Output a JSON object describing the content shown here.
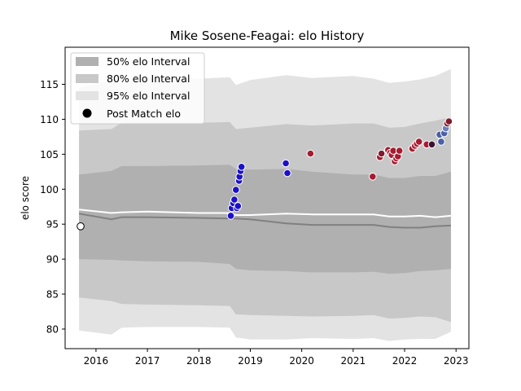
{
  "chart_data": {
    "type": "scatter",
    "title": "Mike Sosene-Feagai: elo History",
    "xlabel": "",
    "ylabel": "elo score",
    "xlim": [
      2015.4,
      2023.25
    ],
    "ylim": [
      77.2,
      120.3
    ],
    "x_ticks": [
      "2016",
      "2017",
      "2018",
      "2019",
      "2020",
      "2021",
      "2022",
      "2023"
    ],
    "y_ticks": [
      "80",
      "85",
      "90",
      "95",
      "100",
      "105",
      "110",
      "115"
    ],
    "grid": false,
    "legend": {
      "placement": "top-left",
      "entries": [
        "50% elo Interval",
        "80% elo Interval",
        "95% elo Interval",
        "Post Match elo"
      ]
    },
    "colors": {
      "band_50": "#b0b0b0",
      "band_80": "#c8c8c8",
      "band_95": "#e3e3e3",
      "mean_line": "#ffffff",
      "median_line": "#808080",
      "point_edge": "#ffffff",
      "first_point_fill": "#ffffff",
      "first_point_edge": "#000000"
    },
    "bands": {
      "x": [
        2015.67,
        2016.3,
        2016.5,
        2017.0,
        2018.0,
        2018.6,
        2018.72,
        2019.0,
        2019.7,
        2020.2,
        2021.0,
        2021.4,
        2021.7,
        2022.0,
        2022.3,
        2022.6,
        2022.9
      ],
      "p95_upper": [
        114.5,
        115.6,
        115.8,
        115.8,
        115.8,
        116.0,
        114.9,
        115.6,
        116.3,
        115.9,
        116.2,
        115.8,
        115.2,
        115.4,
        115.7,
        116.2,
        117.2
      ],
      "p80_upper": [
        108.4,
        108.6,
        109.5,
        109.5,
        109.5,
        109.6,
        108.6,
        108.8,
        109.3,
        109.1,
        109.4,
        109.4,
        108.8,
        108.9,
        109.4,
        109.8,
        110.3
      ],
      "p50_upper": [
        102.1,
        102.6,
        103.3,
        103.3,
        103.4,
        103.5,
        102.9,
        102.8,
        102.9,
        102.5,
        102.1,
        102.1,
        101.6,
        101.6,
        101.9,
        101.9,
        102.5
      ],
      "p50_lower": [
        90.0,
        89.9,
        89.8,
        89.7,
        89.6,
        89.3,
        88.6,
        88.4,
        88.3,
        88.1,
        88.1,
        88.2,
        87.9,
        88.0,
        88.3,
        88.4,
        88.6
      ],
      "p80_lower": [
        84.5,
        84.0,
        83.6,
        83.5,
        83.4,
        83.3,
        82.1,
        82.0,
        81.9,
        81.8,
        81.9,
        82.0,
        81.5,
        81.6,
        81.8,
        81.7,
        81.0
      ],
      "p95_lower": [
        79.8,
        79.2,
        80.2,
        80.3,
        80.3,
        80.2,
        78.8,
        78.5,
        78.5,
        78.7,
        78.6,
        78.7,
        78.3,
        78.5,
        78.6,
        78.6,
        79.6
      ],
      "mean": [
        97.1,
        96.6,
        96.7,
        96.8,
        96.6,
        96.6,
        96.3,
        96.3,
        96.5,
        96.4,
        96.4,
        96.4,
        96.1,
        96.1,
        96.2,
        96.0,
        96.2
      ],
      "median": [
        96.5,
        95.7,
        96.0,
        96.0,
        95.9,
        95.8,
        95.8,
        95.7,
        95.1,
        94.9,
        94.9,
        94.9,
        94.6,
        94.5,
        94.5,
        94.7,
        94.8
      ]
    },
    "points": [
      {
        "x": 2015.7,
        "y": 94.7,
        "color": "#ffffff"
      },
      {
        "x": 2018.62,
        "y": 96.2,
        "color": "#1c10c8"
      },
      {
        "x": 2018.64,
        "y": 97.3,
        "color": "#1c10c8"
      },
      {
        "x": 2018.67,
        "y": 98.0,
        "color": "#1c10c8"
      },
      {
        "x": 2018.69,
        "y": 98.5,
        "color": "#1c10c8"
      },
      {
        "x": 2018.72,
        "y": 99.9,
        "color": "#1c10c8"
      },
      {
        "x": 2018.74,
        "y": 97.3,
        "color": "#1c10c8"
      },
      {
        "x": 2018.76,
        "y": 97.6,
        "color": "#1c10c8"
      },
      {
        "x": 2018.78,
        "y": 101.2,
        "color": "#1c10c8"
      },
      {
        "x": 2018.79,
        "y": 101.8,
        "color": "#1c10c8"
      },
      {
        "x": 2018.81,
        "y": 102.6,
        "color": "#1c10c8"
      },
      {
        "x": 2018.83,
        "y": 103.2,
        "color": "#1c10c8"
      },
      {
        "x": 2019.69,
        "y": 103.7,
        "color": "#1c10c8"
      },
      {
        "x": 2019.72,
        "y": 102.3,
        "color": "#1c10c8"
      },
      {
        "x": 2020.17,
        "y": 105.1,
        "color": "#a51c30"
      },
      {
        "x": 2021.38,
        "y": 101.8,
        "color": "#a51c30"
      },
      {
        "x": 2021.52,
        "y": 104.6,
        "color": "#a51c30"
      },
      {
        "x": 2021.55,
        "y": 105.1,
        "color": "#801b2c"
      },
      {
        "x": 2021.68,
        "y": 105.6,
        "color": "#a51c30"
      },
      {
        "x": 2021.72,
        "y": 105.2,
        "color": "#a51c30"
      },
      {
        "x": 2021.75,
        "y": 104.9,
        "color": "#a51c30"
      },
      {
        "x": 2021.78,
        "y": 105.5,
        "color": "#a51c30"
      },
      {
        "x": 2021.81,
        "y": 104.0,
        "color": "#a51c30"
      },
      {
        "x": 2021.84,
        "y": 104.4,
        "color": "#a51c30"
      },
      {
        "x": 2021.87,
        "y": 104.7,
        "color": "#a51c30"
      },
      {
        "x": 2021.9,
        "y": 105.5,
        "color": "#a51c30"
      },
      {
        "x": 2022.15,
        "y": 105.8,
        "color": "#a51c30"
      },
      {
        "x": 2022.2,
        "y": 106.2,
        "color": "#a51c30"
      },
      {
        "x": 2022.24,
        "y": 106.5,
        "color": "#a51c30"
      },
      {
        "x": 2022.28,
        "y": 106.8,
        "color": "#a51c30"
      },
      {
        "x": 2022.43,
        "y": 106.4,
        "color": "#a51c30"
      },
      {
        "x": 2022.53,
        "y": 106.4,
        "color": "#3a1530"
      },
      {
        "x": 2022.68,
        "y": 107.8,
        "color": "#4b5fa5"
      },
      {
        "x": 2022.71,
        "y": 106.8,
        "color": "#4b5fa5"
      },
      {
        "x": 2022.77,
        "y": 108.0,
        "color": "#4b5fa5"
      },
      {
        "x": 2022.8,
        "y": 108.7,
        "color": "#6a7fbf"
      },
      {
        "x": 2022.83,
        "y": 109.4,
        "color": "#801b2c"
      },
      {
        "x": 2022.86,
        "y": 109.7,
        "color": "#801b2c"
      }
    ]
  }
}
